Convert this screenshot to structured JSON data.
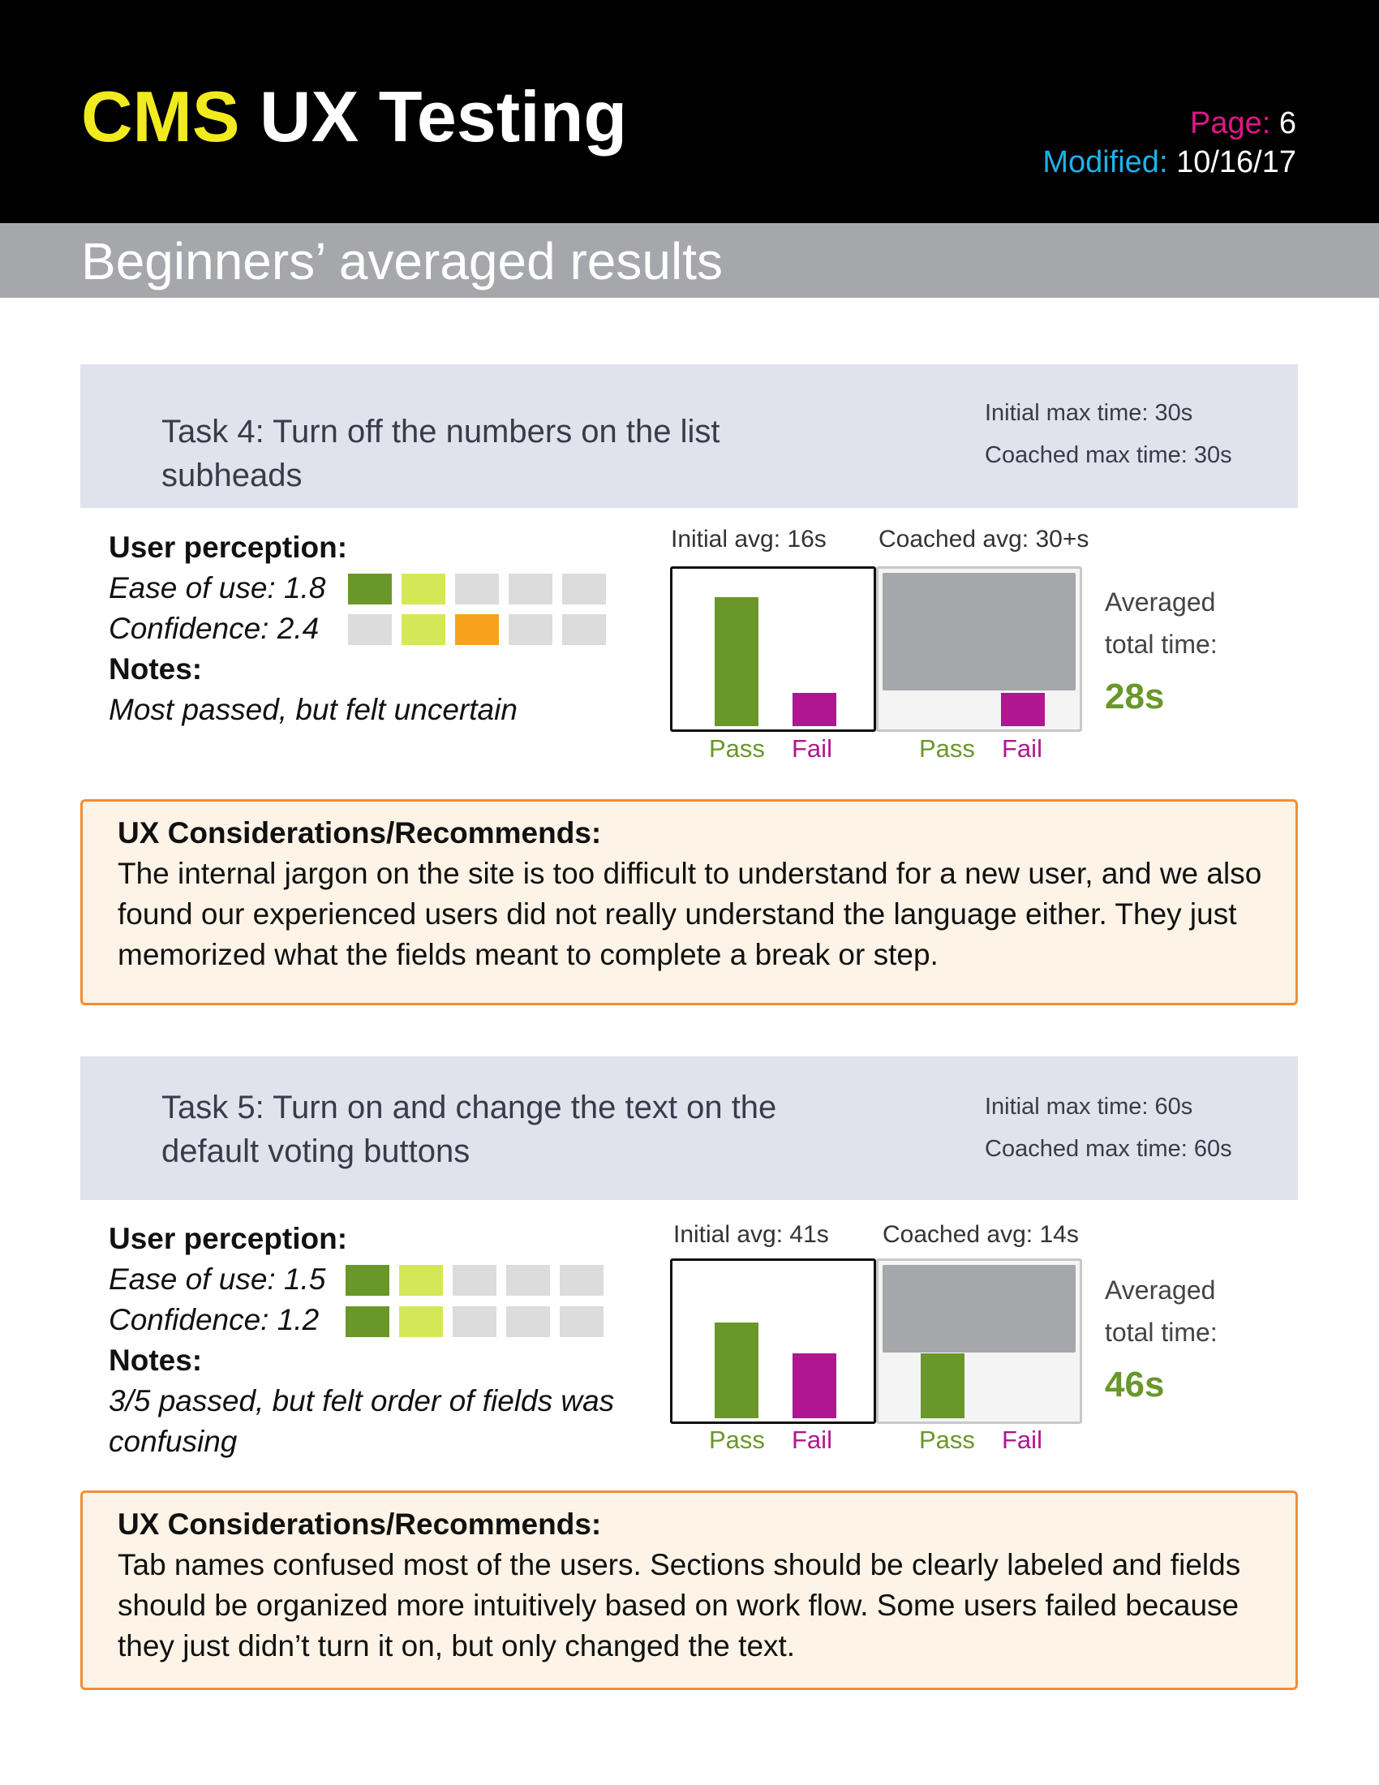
{
  "header": {
    "brand": "CMS",
    "title": "UX Testing",
    "page_label": "Page:",
    "page_value": "6",
    "modified_label": "Modified:",
    "modified_value": "10/16/17"
  },
  "subtitle": "Beginners’ averaged results",
  "colors": {
    "header_bg": "#000000",
    "brand": "#f1ea1f",
    "page_label": "#e0158a",
    "modified_label": "#1fb1e8",
    "pass": "#6a972a",
    "fail": "#b0168f",
    "light_green": "#d4e857",
    "orange": "#f6a21c",
    "empty_square": "#dcdcdc",
    "ux_border": "#f48d32",
    "ux_bg": "#fdf3e6"
  },
  "tasks": [
    {
      "title": "Task 4: Turn off the numbers on the list subheads",
      "initial_max": "Initial max time: 30s",
      "coached_max": "Coached max time: 30s",
      "perception_header": "User perception:",
      "ease_label": "Ease of use: 1.8",
      "ease_squares": [
        "#6a972a",
        "#d4e857",
        "#dcdcdc",
        "#dcdcdc",
        "#dcdcdc"
      ],
      "confidence_label": "Confidence: 2.4",
      "confidence_squares": [
        "#dcdcdc",
        "#d4e857",
        "#f6a21c",
        "#dcdcdc",
        "#dcdcdc"
      ],
      "notes_header": "Notes:",
      "notes": "Most passed, but felt uncertain",
      "initial_avg": "Initial avg: 16s",
      "coached_avg": "Coached avg: 30+s",
      "chart_initial": {
        "pass": 0.82,
        "fail": 0.21
      },
      "chart_coached": {
        "pass": 0,
        "fail": 0.21,
        "shaded": 0.75
      },
      "pass_label": "Pass",
      "fail_label": "Fail",
      "avg_total_label_1": "Averaged",
      "avg_total_label_2": "total time:",
      "avg_total": "28s",
      "ux_header": "UX Considerations/Recommends:",
      "ux_text": "The internal jargon on the site is too difficult to understand for a new user, and we also found our experienced users did not really understand the language either. They just memorized what the fields meant to complete a break or step."
    },
    {
      "title": "Task 5: Turn on and change the text on the default voting buttons",
      "initial_max": "Initial max time: 60s",
      "coached_max": "Coached max time: 60s",
      "perception_header": "User perception:",
      "ease_label": "Ease of use: 1.5",
      "ease_squares": [
        "#6a972a",
        "#d4e857",
        "#dcdcdc",
        "#dcdcdc",
        "#dcdcdc"
      ],
      "confidence_label": "Confidence: 1.2",
      "confidence_squares": [
        "#6a972a",
        "#d4e857",
        "#dcdcdc",
        "#dcdcdc",
        "#dcdcdc"
      ],
      "notes_header": "Notes:",
      "notes": "3/5 passed, but felt order of fields was confusing",
      "initial_avg": "Initial avg: 41s",
      "coached_avg": "Coached avg: 14s",
      "chart_initial": {
        "pass": 0.61,
        "fail": 0.41
      },
      "chart_coached": {
        "pass": 0.41,
        "fail": 0,
        "shaded": 0.56
      },
      "pass_label": "Pass",
      "fail_label": "Fail",
      "avg_total_label_1": "Averaged",
      "avg_total_label_2": "total time:",
      "avg_total": "46s",
      "ux_header": "UX Considerations/Recommends:",
      "ux_text": "Tab names confused most of the users. Sections should be clearly labeled and fields should be organized more intuitively based on work flow. Some users failed because they just didn’t turn it on, but only changed the text."
    }
  ]
}
